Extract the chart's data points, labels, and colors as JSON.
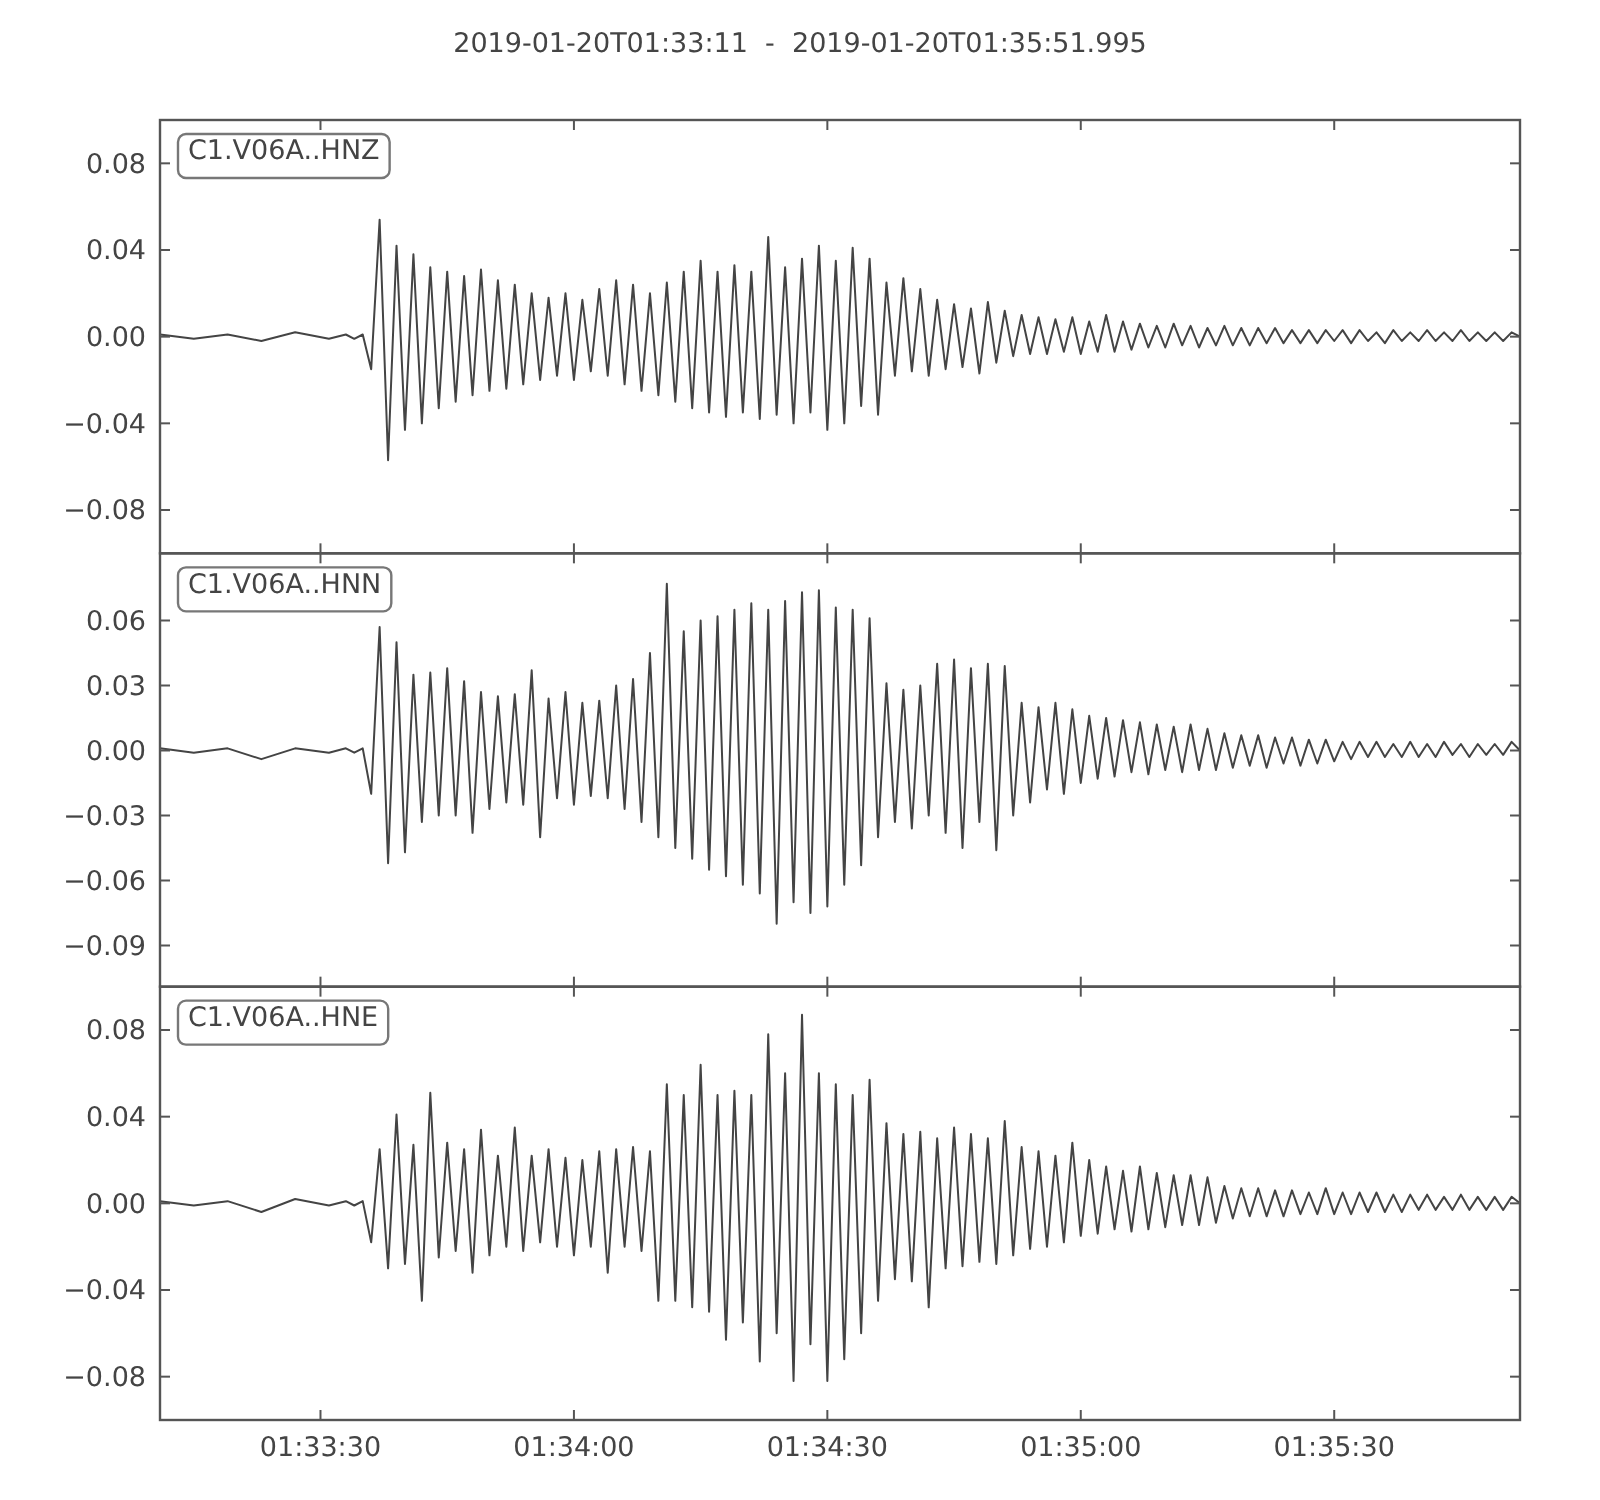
{
  "chart_data": [
    {
      "type": "line",
      "title": "2019-01-20T01:33:11  -  2019-01-20T01:35:51.995",
      "annotations": [
        "C1.V06A..HNZ"
      ],
      "tick_labels": "y",
      "color": "#444444",
      "xlim": [
        1.553056,
        1.597776
      ],
      "xticks": [
        {
          "value": 1.558333,
          "label": null
        },
        {
          "value": 1.566667,
          "label": null
        },
        {
          "value": 1.575,
          "label": null
        },
        {
          "value": 1.583333,
          "label": null
        },
        {
          "value": 1.591667,
          "label": null
        }
      ],
      "ylim": [
        -0.1,
        0.1
      ],
      "yticks": [
        {
          "value": -0.08,
          "label": "−0.08"
        },
        {
          "value": -0.04,
          "label": "−0.04"
        },
        {
          "value": 0,
          "label": "0.00"
        },
        {
          "value": 0.04,
          "label": "0.04"
        },
        {
          "value": 0.08,
          "label": "0.08"
        }
      ],
      "x": [
        1.553056,
        1.554167,
        1.555278,
        1.556389,
        1.5575,
        1.558611,
        1.559167,
        1.559444,
        1.559722,
        1.56,
        1.560278,
        1.560556,
        1.560833,
        1.561111,
        1.561389,
        1.561667,
        1.561944,
        1.562222,
        1.5625,
        1.562778,
        1.563056,
        1.563333,
        1.563611,
        1.563889,
        1.564167,
        1.564444,
        1.564722,
        1.565,
        1.565278,
        1.565556,
        1.565833,
        1.566111,
        1.566389,
        1.566667,
        1.566944,
        1.567222,
        1.5675,
        1.567778,
        1.568056,
        1.568333,
        1.568611,
        1.568889,
        1.569167,
        1.569444,
        1.569722,
        1.57,
        1.570278,
        1.570556,
        1.570833,
        1.571111,
        1.571389,
        1.571667,
        1.571944,
        1.572222,
        1.5725,
        1.572778,
        1.573056,
        1.573333,
        1.573611,
        1.573889,
        1.574167,
        1.574444,
        1.574722,
        1.575,
        1.575278,
        1.575556,
        1.575833,
        1.576111,
        1.576389,
        1.576667,
        1.576944,
        1.577222,
        1.5775,
        1.577778,
        1.578056,
        1.578333,
        1.578611,
        1.578889,
        1.579167,
        1.579444,
        1.579722,
        1.58,
        1.580278,
        1.580556,
        1.580833,
        1.581111,
        1.581389,
        1.581667,
        1.581944,
        1.582222,
        1.5825,
        1.582778,
        1.583056,
        1.583333,
        1.583611,
        1.583889,
        1.584167,
        1.584444,
        1.584722,
        1.585,
        1.585278,
        1.585556,
        1.585833,
        1.586111,
        1.586389,
        1.586667,
        1.586944,
        1.587222,
        1.5875,
        1.587778,
        1.588056,
        1.588333,
        1.588611,
        1.588889,
        1.589167,
        1.589444,
        1.589722,
        1.59,
        1.590278,
        1.590556,
        1.590833,
        1.591111,
        1.591389,
        1.591667,
        1.591944,
        1.592222,
        1.5925,
        1.592778,
        1.593056,
        1.593333,
        1.593611,
        1.593889,
        1.594167,
        1.594444,
        1.594722,
        1.595,
        1.595278,
        1.595556,
        1.595833,
        1.596111,
        1.596389,
        1.596667,
        1.596944,
        1.597222,
        1.5975,
        1.597776
      ],
      "values": [
        0.001,
        -0.001,
        0.001,
        -0.002,
        0.002,
        -0.001,
        0.001,
        -0.001,
        0.001,
        -0.015,
        0.054,
        -0.057,
        0.042,
        -0.043,
        0.038,
        -0.04,
        0.032,
        -0.033,
        0.03,
        -0.03,
        0.028,
        -0.027,
        0.031,
        -0.025,
        0.026,
        -0.024,
        0.024,
        -0.022,
        0.02,
        -0.02,
        0.018,
        -0.018,
        0.02,
        -0.02,
        0.017,
        -0.016,
        0.022,
        -0.018,
        0.026,
        -0.022,
        0.024,
        -0.025,
        0.02,
        -0.027,
        0.025,
        -0.03,
        0.03,
        -0.033,
        0.035,
        -0.035,
        0.03,
        -0.037,
        0.033,
        -0.035,
        0.03,
        -0.038,
        0.046,
        -0.036,
        0.032,
        -0.04,
        0.036,
        -0.035,
        0.042,
        -0.043,
        0.035,
        -0.04,
        0.041,
        -0.032,
        0.036,
        -0.036,
        0.025,
        -0.018,
        0.027,
        -0.016,
        0.022,
        -0.018,
        0.017,
        -0.015,
        0.015,
        -0.014,
        0.013,
        -0.017,
        0.016,
        -0.012,
        0.012,
        -0.009,
        0.01,
        -0.008,
        0.009,
        -0.008,
        0.008,
        -0.007,
        0.009,
        -0.008,
        0.007,
        -0.007,
        0.01,
        -0.007,
        0.007,
        -0.006,
        0.006,
        -0.005,
        0.005,
        -0.005,
        0.006,
        -0.004,
        0.005,
        -0.005,
        0.004,
        -0.004,
        0.005,
        -0.004,
        0.004,
        -0.004,
        0.004,
        -0.003,
        0.004,
        -0.003,
        0.003,
        -0.003,
        0.003,
        -0.003,
        0.003,
        -0.002,
        0.003,
        -0.003,
        0.003,
        -0.002,
        0.002,
        -0.003,
        0.003,
        -0.002,
        0.002,
        -0.002,
        0.003,
        -0.002,
        0.002,
        -0.002,
        0.003,
        -0.002,
        0.002,
        -0.002,
        0.002,
        -0.002,
        0.002,
        0
      ]
    },
    {
      "type": "line",
      "annotations": [
        "C1.V06A..HNN"
      ],
      "tick_labels": "y",
      "color": "#444444",
      "xlim": [
        1.553056,
        1.597776
      ],
      "xticks": [
        {
          "value": 1.558333,
          "label": null
        },
        {
          "value": 1.566667,
          "label": null
        },
        {
          "value": 1.575,
          "label": null
        },
        {
          "value": 1.583333,
          "label": null
        },
        {
          "value": 1.591667,
          "label": null
        }
      ],
      "ylim": [
        -0.109,
        0.091
      ],
      "yticks": [
        {
          "value": -0.09,
          "label": "−0.09"
        },
        {
          "value": -0.06,
          "label": "−0.06"
        },
        {
          "value": -0.03,
          "label": "−0.03"
        },
        {
          "value": 0,
          "label": "0.00"
        },
        {
          "value": 0.03,
          "label": "0.03"
        },
        {
          "value": 0.06,
          "label": "0.06"
        }
      ],
      "x": [
        1.553056,
        1.554167,
        1.555278,
        1.556389,
        1.5575,
        1.558611,
        1.559167,
        1.559444,
        1.559722,
        1.56,
        1.560278,
        1.560556,
        1.560833,
        1.561111,
        1.561389,
        1.561667,
        1.561944,
        1.562222,
        1.5625,
        1.562778,
        1.563056,
        1.563333,
        1.563611,
        1.563889,
        1.564167,
        1.564444,
        1.564722,
        1.565,
        1.565278,
        1.565556,
        1.565833,
        1.566111,
        1.566389,
        1.566667,
        1.566944,
        1.567222,
        1.5675,
        1.567778,
        1.568056,
        1.568333,
        1.568611,
        1.568889,
        1.569167,
        1.569444,
        1.569722,
        1.57,
        1.570278,
        1.570556,
        1.570833,
        1.571111,
        1.571389,
        1.571667,
        1.571944,
        1.572222,
        1.5725,
        1.572778,
        1.573056,
        1.573333,
        1.573611,
        1.573889,
        1.574167,
        1.574444,
        1.574722,
        1.575,
        1.575278,
        1.575556,
        1.575833,
        1.576111,
        1.576389,
        1.576667,
        1.576944,
        1.577222,
        1.5775,
        1.577778,
        1.578056,
        1.578333,
        1.578611,
        1.578889,
        1.579167,
        1.579444,
        1.579722,
        1.58,
        1.580278,
        1.580556,
        1.580833,
        1.581111,
        1.581389,
        1.581667,
        1.581944,
        1.582222,
        1.5825,
        1.582778,
        1.583056,
        1.583333,
        1.583611,
        1.583889,
        1.584167,
        1.584444,
        1.584722,
        1.585,
        1.585278,
        1.585556,
        1.585833,
        1.586111,
        1.586389,
        1.586667,
        1.586944,
        1.587222,
        1.5875,
        1.587778,
        1.588056,
        1.588333,
        1.588611,
        1.588889,
        1.589167,
        1.589444,
        1.589722,
        1.59,
        1.590278,
        1.590556,
        1.590833,
        1.591111,
        1.591389,
        1.591667,
        1.591944,
        1.592222,
        1.5925,
        1.592778,
        1.593056,
        1.593333,
        1.593611,
        1.593889,
        1.594167,
        1.594444,
        1.594722,
        1.595,
        1.595278,
        1.595556,
        1.595833,
        1.596111,
        1.596389,
        1.596667,
        1.596944,
        1.597222,
        1.5975,
        1.597776
      ],
      "values": [
        0.001,
        -0.001,
        0.001,
        -0.004,
        0.001,
        -0.001,
        0.001,
        -0.001,
        0.001,
        -0.02,
        0.057,
        -0.052,
        0.05,
        -0.047,
        0.035,
        -0.033,
        0.036,
        -0.03,
        0.038,
        -0.03,
        0.032,
        -0.038,
        0.027,
        -0.027,
        0.025,
        -0.024,
        0.026,
        -0.025,
        0.037,
        -0.04,
        0.024,
        -0.022,
        0.027,
        -0.025,
        0.022,
        -0.021,
        0.023,
        -0.022,
        0.03,
        -0.027,
        0.033,
        -0.033,
        0.045,
        -0.04,
        0.077,
        -0.045,
        0.055,
        -0.05,
        0.06,
        -0.055,
        0.062,
        -0.058,
        0.065,
        -0.062,
        0.068,
        -0.066,
        0.065,
        -0.08,
        0.069,
        -0.07,
        0.073,
        -0.075,
        0.074,
        -0.072,
        0.066,
        -0.062,
        0.065,
        -0.053,
        0.061,
        -0.04,
        0.031,
        -0.033,
        0.028,
        -0.036,
        0.03,
        -0.03,
        0.04,
        -0.038,
        0.042,
        -0.045,
        0.038,
        -0.033,
        0.04,
        -0.046,
        0.039,
        -0.03,
        0.022,
        -0.024,
        0.02,
        -0.018,
        0.022,
        -0.02,
        0.019,
        -0.015,
        0.016,
        -0.013,
        0.015,
        -0.012,
        0.014,
        -0.01,
        0.013,
        -0.011,
        0.012,
        -0.009,
        0.011,
        -0.01,
        0.012,
        -0.009,
        0.01,
        -0.009,
        0.008,
        -0.008,
        0.007,
        -0.007,
        0.007,
        -0.008,
        0.006,
        -0.006,
        0.006,
        -0.007,
        0.005,
        -0.006,
        0.005,
        -0.005,
        0.004,
        -0.004,
        0.004,
        -0.003,
        0.004,
        -0.003,
        0.003,
        -0.003,
        0.004,
        -0.003,
        0.003,
        -0.003,
        0.004,
        -0.002,
        0.003,
        -0.003,
        0.003,
        -0.002,
        0.003,
        -0.002,
        0.004,
        0
      ]
    },
    {
      "type": "line",
      "annotations": [
        "C1.V06A..HNE"
      ],
      "color": "#444444",
      "xlim": [
        1.553056,
        1.597776
      ],
      "xticks": [
        {
          "value": 1.558333,
          "label": "01:33:30"
        },
        {
          "value": 1.566667,
          "label": "01:34:00"
        },
        {
          "value": 1.575,
          "label": "01:34:30"
        },
        {
          "value": 1.583333,
          "label": "01:35:00"
        },
        {
          "value": 1.591667,
          "label": "01:35:30"
        }
      ],
      "ylim": [
        -0.1,
        0.1
      ],
      "yticks": [
        {
          "value": -0.08,
          "label": "−0.08"
        },
        {
          "value": -0.04,
          "label": "−0.04"
        },
        {
          "value": 0,
          "label": "0.00"
        },
        {
          "value": 0.04,
          "label": "0.04"
        },
        {
          "value": 0.08,
          "label": "0.08"
        }
      ],
      "x": [
        1.553056,
        1.554167,
        1.555278,
        1.556389,
        1.5575,
        1.558611,
        1.559167,
        1.559444,
        1.559722,
        1.56,
        1.560278,
        1.560556,
        1.560833,
        1.561111,
        1.561389,
        1.561667,
        1.561944,
        1.562222,
        1.5625,
        1.562778,
        1.563056,
        1.563333,
        1.563611,
        1.563889,
        1.564167,
        1.564444,
        1.564722,
        1.565,
        1.565278,
        1.565556,
        1.565833,
        1.566111,
        1.566389,
        1.566667,
        1.566944,
        1.567222,
        1.5675,
        1.567778,
        1.568056,
        1.568333,
        1.568611,
        1.568889,
        1.569167,
        1.569444,
        1.569722,
        1.57,
        1.570278,
        1.570556,
        1.570833,
        1.571111,
        1.571389,
        1.571667,
        1.571944,
        1.572222,
        1.5725,
        1.572778,
        1.573056,
        1.573333,
        1.573611,
        1.573889,
        1.574167,
        1.574444,
        1.574722,
        1.575,
        1.575278,
        1.575556,
        1.575833,
        1.576111,
        1.576389,
        1.576667,
        1.576944,
        1.577222,
        1.5775,
        1.577778,
        1.578056,
        1.578333,
        1.578611,
        1.578889,
        1.579167,
        1.579444,
        1.579722,
        1.58,
        1.580278,
        1.580556,
        1.580833,
        1.581111,
        1.581389,
        1.581667,
        1.581944,
        1.582222,
        1.5825,
        1.582778,
        1.583056,
        1.583333,
        1.583611,
        1.583889,
        1.584167,
        1.584444,
        1.584722,
        1.585,
        1.585278,
        1.585556,
        1.585833,
        1.586111,
        1.586389,
        1.586667,
        1.586944,
        1.587222,
        1.5875,
        1.587778,
        1.588056,
        1.588333,
        1.588611,
        1.588889,
        1.589167,
        1.589444,
        1.589722,
        1.59,
        1.590278,
        1.590556,
        1.590833,
        1.591111,
        1.591389,
        1.591667,
        1.591944,
        1.592222,
        1.5925,
        1.592778,
        1.593056,
        1.593333,
        1.593611,
        1.593889,
        1.594167,
        1.594444,
        1.594722,
        1.595,
        1.595278,
        1.595556,
        1.595833,
        1.596111,
        1.596389,
        1.596667,
        1.596944,
        1.597222,
        1.5975,
        1.597776
      ],
      "values": [
        0.001,
        -0.001,
        0.001,
        -0.004,
        0.002,
        -0.001,
        0.001,
        -0.001,
        0.001,
        -0.018,
        0.025,
        -0.03,
        0.041,
        -0.028,
        0.027,
        -0.045,
        0.051,
        -0.025,
        0.028,
        -0.022,
        0.025,
        -0.032,
        0.034,
        -0.024,
        0.022,
        -0.02,
        0.035,
        -0.022,
        0.022,
        -0.018,
        0.025,
        -0.02,
        0.021,
        -0.024,
        0.02,
        -0.02,
        0.024,
        -0.032,
        0.025,
        -0.02,
        0.026,
        -0.022,
        0.024,
        -0.045,
        0.055,
        -0.045,
        0.05,
        -0.048,
        0.064,
        -0.05,
        0.05,
        -0.063,
        0.052,
        -0.055,
        0.05,
        -0.073,
        0.078,
        -0.06,
        0.06,
        -0.082,
        0.087,
        -0.065,
        0.06,
        -0.082,
        0.055,
        -0.072,
        0.05,
        -0.06,
        0.057,
        -0.045,
        0.037,
        -0.035,
        0.032,
        -0.036,
        0.033,
        -0.048,
        0.03,
        -0.03,
        0.035,
        -0.029,
        0.032,
        -0.027,
        0.03,
        -0.028,
        0.038,
        -0.024,
        0.026,
        -0.021,
        0.024,
        -0.02,
        0.022,
        -0.018,
        0.028,
        -0.015,
        0.02,
        -0.014,
        0.017,
        -0.012,
        0.015,
        -0.013,
        0.017,
        -0.012,
        0.014,
        -0.011,
        0.013,
        -0.01,
        0.013,
        -0.01,
        0.012,
        -0.009,
        0.008,
        -0.007,
        0.007,
        -0.006,
        0.007,
        -0.006,
        0.006,
        -0.006,
        0.006,
        -0.005,
        0.005,
        -0.005,
        0.007,
        -0.005,
        0.005,
        -0.005,
        0.005,
        -0.004,
        0.005,
        -0.004,
        0.004,
        -0.004,
        0.004,
        -0.003,
        0.004,
        -0.003,
        0.003,
        -0.003,
        0.004,
        -0.003,
        0.003,
        -0.003,
        0.003,
        -0.003,
        0.003,
        0
      ]
    }
  ]
}
